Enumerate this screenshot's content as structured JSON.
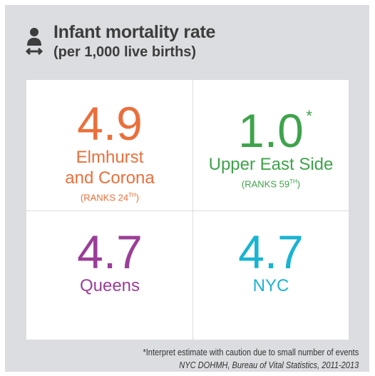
{
  "header": {
    "title": "Infant mortality rate",
    "subtitle": "(per 1,000 live births)"
  },
  "cells": [
    {
      "value": "4.9",
      "label_lines": [
        "Elmhurst",
        "and Corona"
      ],
      "rank": [
        "(RANKS 24",
        "TH",
        ")"
      ],
      "color": "#ea6f3b"
    },
    {
      "value": "1.0",
      "marker": "*",
      "label_lines": [
        "Upper East Side"
      ],
      "rank": [
        "(RANKS 59",
        "TH",
        ")"
      ],
      "color": "#3ea34b"
    },
    {
      "value": "4.7",
      "label_lines": [
        "Queens"
      ],
      "color": "#9b3e97"
    },
    {
      "value": "4.7",
      "label_lines": [
        "NYC"
      ],
      "color": "#19b4d2"
    }
  ],
  "footnote": "*Interpret estimate with caution due to small number of events",
  "source": "NYC DOHMH, Bureau of Vital Statistics, 2011-2013"
}
